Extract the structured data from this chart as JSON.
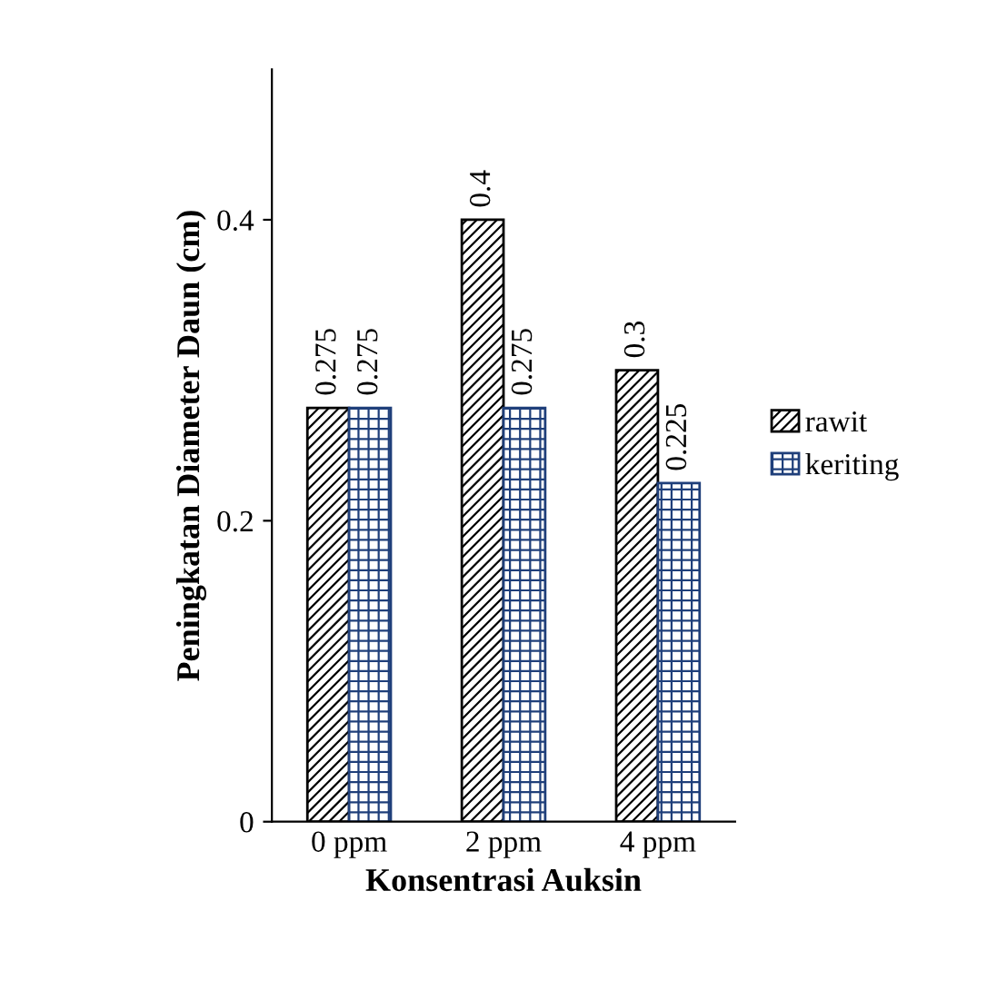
{
  "chart_data": {
    "type": "bar",
    "xlabel": "Konsentrasi Auksin",
    "ylabel": "Peningkatan Diameter Daun (cm)",
    "categories": [
      "0 ppm",
      "2 ppm",
      "4 ppm"
    ],
    "series": [
      {
        "name": "rawit",
        "color": "#000000",
        "values": [
          0.275,
          0.4,
          0.3
        ]
      },
      {
        "name": "keriting",
        "color": "#1f3f7a",
        "values": [
          0.275,
          0.275,
          0.225
        ]
      }
    ],
    "ylim": [
      0,
      0.5
    ],
    "yticks": [
      0,
      0.2,
      0.4
    ],
    "grid": false,
    "legend": "right",
    "data_labels": true
  }
}
